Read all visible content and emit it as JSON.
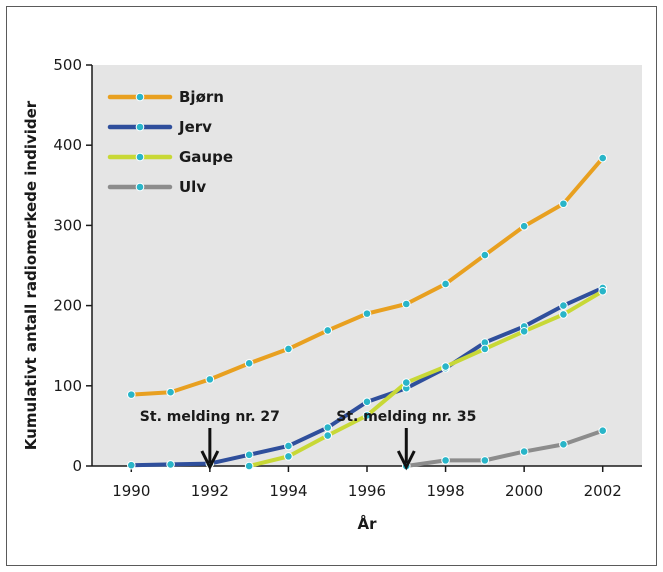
{
  "chart_data": {
    "type": "line",
    "title": "",
    "xlabel": "År",
    "ylabel": "Kumulativt antall radiomerkede individer",
    "xlim": [
      1989,
      2003
    ],
    "ylim": [
      0,
      500
    ],
    "xticks": [
      1990,
      1992,
      1994,
      1996,
      1998,
      2000,
      2002
    ],
    "yticks": [
      0,
      100,
      200,
      300,
      400,
      500
    ],
    "grid": false,
    "legend_position": "top-left",
    "background": "#e5e5e5",
    "series": [
      {
        "name": "Bjørn",
        "color": "#e8a020",
        "points": [
          [
            1990,
            89
          ],
          [
            1991,
            92
          ],
          [
            1992,
            108
          ],
          [
            1993,
            128
          ],
          [
            1994,
            146
          ],
          [
            1995,
            169
          ],
          [
            1996,
            190
          ],
          [
            1997,
            202
          ],
          [
            1998,
            227
          ],
          [
            1999,
            263
          ],
          [
            2000,
            299
          ],
          [
            2001,
            327
          ],
          [
            2002,
            384
          ]
        ]
      },
      {
        "name": "Jerv",
        "color": "#2f4f9c",
        "points": [
          [
            1990,
            1
          ],
          [
            1991,
            2
          ],
          [
            1992,
            3
          ],
          [
            1993,
            14
          ],
          [
            1994,
            25
          ],
          [
            1995,
            48
          ],
          [
            1996,
            80
          ],
          [
            1997,
            97
          ],
          [
            1998,
            122
          ],
          [
            1999,
            154
          ],
          [
            2000,
            174
          ],
          [
            2001,
            200
          ],
          [
            2002,
            222
          ]
        ]
      },
      {
        "name": "Gaupe",
        "color": "#c8d836",
        "points": [
          [
            1993,
            0
          ],
          [
            1994,
            12
          ],
          [
            1995,
            38
          ],
          [
            1996,
            63
          ],
          [
            1997,
            104
          ],
          [
            1998,
            124
          ],
          [
            1999,
            146
          ],
          [
            2000,
            168
          ],
          [
            2001,
            189
          ],
          [
            2002,
            218
          ]
        ]
      },
      {
        "name": "Ulv",
        "color": "#8c8c8c",
        "points": [
          [
            1997,
            0
          ],
          [
            1998,
            7
          ],
          [
            1999,
            7
          ],
          [
            2000,
            18
          ],
          [
            2001,
            27
          ],
          [
            2002,
            44
          ]
        ]
      }
    ],
    "marker_color": "#29b5c8",
    "annotations": [
      {
        "text": "St. melding nr. 27",
        "x": 1992
      },
      {
        "text": "St. melding nr. 35",
        "x": 1997
      }
    ]
  }
}
